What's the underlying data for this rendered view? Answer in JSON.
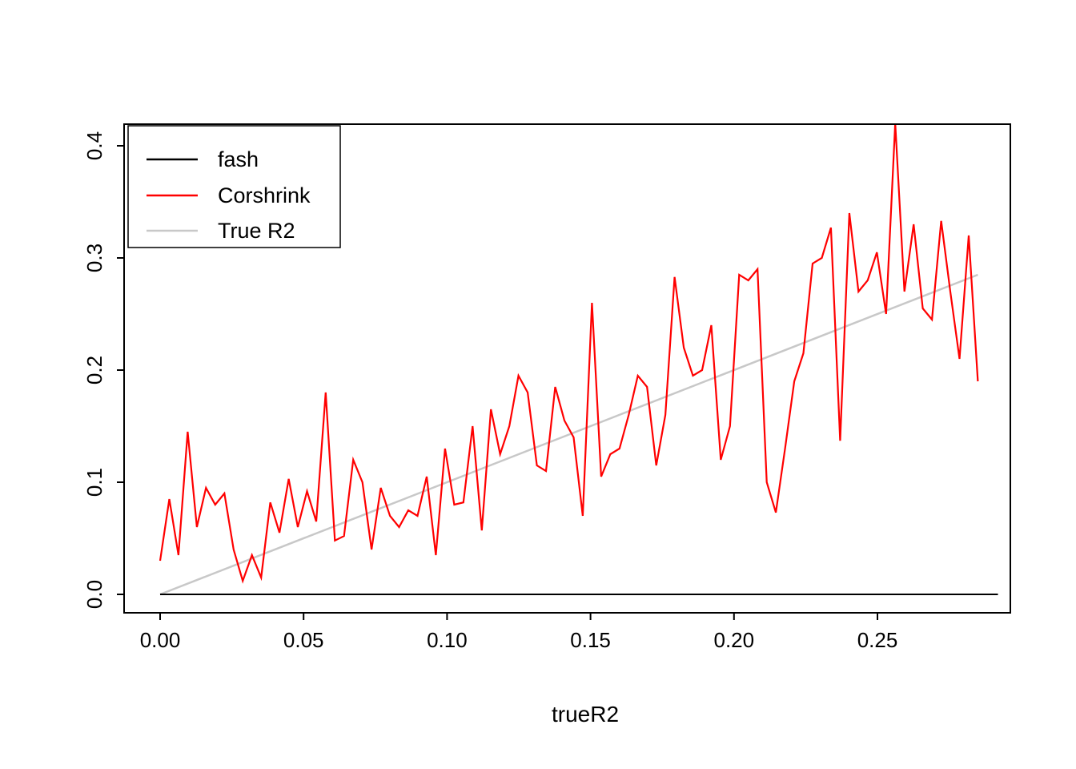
{
  "chart_data": {
    "type": "line",
    "title": "",
    "xlabel": "trueR2",
    "ylabel": "",
    "xlim": [
      -0.013,
      0.296
    ],
    "ylim": [
      -0.017,
      0.435
    ],
    "grid": false,
    "x_ticks": [
      "0.00",
      "0.05",
      "0.10",
      "0.15",
      "0.20",
      "0.25"
    ],
    "x_tick_values": [
      0.0,
      0.05,
      0.1,
      0.15,
      0.2,
      0.25
    ],
    "y_ticks": [
      "0.0",
      "0.1",
      "0.2",
      "0.3",
      "0.4"
    ],
    "y_tick_values": [
      0.0,
      0.1,
      0.2,
      0.3,
      0.4
    ],
    "legend_position": "top-left",
    "legend": [
      {
        "label": "fash",
        "color": "#000000"
      },
      {
        "label": "Corshrink",
        "color": "#FF0000"
      },
      {
        "label": "True R2",
        "color": "#C8C8C8"
      }
    ],
    "series": [
      {
        "name": "True R2",
        "color": "#C8C8C8",
        "width": 2.5,
        "x": [
          0.0,
          0.285
        ],
        "y": [
          0.0,
          0.285
        ]
      },
      {
        "name": "fash",
        "color": "#000000",
        "width": 2,
        "x": [
          0.0,
          0.292
        ],
        "y": [
          0.0,
          0.0
        ]
      },
      {
        "name": "Corshrink",
        "color": "#FF0000",
        "width": 2.2,
        "x": [
          0.0,
          0.0032,
          0.0064,
          0.0096,
          0.0128,
          0.016,
          0.0192,
          0.0224,
          0.0256,
          0.0288,
          0.032,
          0.0352,
          0.0384,
          0.0416,
          0.0448,
          0.048,
          0.0512,
          0.0544,
          0.0577,
          0.0609,
          0.0641,
          0.0673,
          0.0705,
          0.0737,
          0.0769,
          0.0801,
          0.0833,
          0.0865,
          0.0897,
          0.0929,
          0.0961,
          0.0993,
          0.1025,
          0.1057,
          0.1089,
          0.1121,
          0.1153,
          0.1185,
          0.1217,
          0.1249,
          0.1281,
          0.1313,
          0.1345,
          0.1377,
          0.1409,
          0.1441,
          0.1473,
          0.1505,
          0.1537,
          0.1569,
          0.1601,
          0.1633,
          0.1665,
          0.1697,
          0.1729,
          0.1761,
          0.1793,
          0.1825,
          0.1857,
          0.1889,
          0.1921,
          0.1954,
          0.1986,
          0.2018,
          0.205,
          0.2082,
          0.2114,
          0.2146,
          0.2178,
          0.221,
          0.2242,
          0.2274,
          0.2306,
          0.2338,
          0.237,
          0.2402,
          0.2434,
          0.2466,
          0.2498,
          0.253,
          0.2562,
          0.2594,
          0.2626,
          0.2658,
          0.269,
          0.2722,
          0.2754,
          0.2786,
          0.2818,
          0.285
        ],
        "y": [
          0.03,
          0.085,
          0.035,
          0.145,
          0.06,
          0.095,
          0.08,
          0.09,
          0.04,
          0.012,
          0.035,
          0.015,
          0.082,
          0.055,
          0.103,
          0.06,
          0.092,
          0.065,
          0.18,
          0.048,
          0.052,
          0.12,
          0.1,
          0.04,
          0.095,
          0.07,
          0.06,
          0.075,
          0.07,
          0.105,
          0.035,
          0.13,
          0.08,
          0.082,
          0.15,
          0.057,
          0.165,
          0.125,
          0.15,
          0.195,
          0.18,
          0.115,
          0.11,
          0.185,
          0.155,
          0.14,
          0.07,
          0.26,
          0.105,
          0.125,
          0.13,
          0.16,
          0.195,
          0.185,
          0.115,
          0.16,
          0.283,
          0.22,
          0.195,
          0.2,
          0.24,
          0.12,
          0.15,
          0.285,
          0.28,
          0.29,
          0.1,
          0.073,
          0.13,
          0.19,
          0.215,
          0.295,
          0.3,
          0.327,
          0.137,
          0.34,
          0.27,
          0.28,
          0.305,
          0.25,
          0.42,
          0.27,
          0.33,
          0.255,
          0.245,
          0.333,
          0.27,
          0.21,
          0.32,
          0.19
        ]
      }
    ]
  }
}
